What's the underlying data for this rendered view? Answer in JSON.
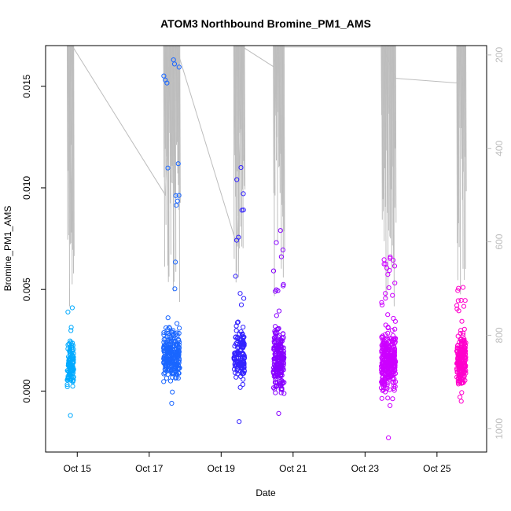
{
  "chart_data": {
    "type": "scatter",
    "title": "ATOM3 Northbound Bromine_PM1_AMS",
    "xlabel": "Date",
    "ylabel": "Bromine_PM1_AMS",
    "x_ticks": [
      "Oct 15",
      "Oct 17",
      "Oct 19",
      "Oct 21",
      "Oct 23",
      "Oct 25"
    ],
    "xlim": [
      "Oct 14.12",
      "Oct 26.38"
    ],
    "ylim": [
      -0.003,
      0.017
    ],
    "y_ticks": [
      "0.000",
      "0.005",
      "0.010",
      "0.015"
    ],
    "right_axis": {
      "label": "",
      "reversed": true,
      "ticks": [
        "200",
        "400",
        "600",
        "800",
        "1000"
      ],
      "ylim": [
        1050,
        180
      ],
      "color": "#bdbdbd"
    },
    "grid": false,
    "legend": "none",
    "marker": "open-circle",
    "color_scale": [
      "#00aaff",
      "#3333ff",
      "#9900ff",
      "#ff00cc"
    ],
    "series": [
      {
        "day_start": 14.72,
        "day_end": 14.9,
        "points": 110,
        "y_center": 0.0013,
        "y_spread": 0.0011,
        "y_min": -0.0012,
        "y_max": 0.0041,
        "color": "#00aaff"
      },
      {
        "day_start": 17.4,
        "day_end": 17.85,
        "points": 260,
        "y_center": 0.0018,
        "y_spread": 0.0012,
        "y_min": -0.0006,
        "y_max": 0.0163,
        "color": "#1a66ff"
      },
      {
        "day_start": 19.35,
        "day_end": 19.65,
        "points": 150,
        "y_center": 0.0017,
        "y_spread": 0.0013,
        "y_min": -0.0015,
        "y_max": 0.011,
        "color": "#3322ff"
      },
      {
        "day_start": 20.45,
        "day_end": 20.75,
        "points": 220,
        "y_center": 0.0015,
        "y_spread": 0.0013,
        "y_min": -0.0011,
        "y_max": 0.0079,
        "color": "#8800ff"
      },
      {
        "day_start": 23.45,
        "day_end": 23.85,
        "points": 330,
        "y_center": 0.0015,
        "y_spread": 0.0014,
        "y_min": -0.0023,
        "y_max": 0.0066,
        "color": "#cc00ff"
      },
      {
        "day_start": 25.55,
        "day_end": 25.8,
        "points": 220,
        "y_center": 0.0015,
        "y_spread": 0.0012,
        "y_min": -0.0005,
        "y_max": 0.0051,
        "color": "#ff00cc"
      }
    ],
    "altitude_trace": {
      "color": "#bdbdbd",
      "segments": [
        {
          "day": 14.8,
          "alt": 183
        },
        {
          "day": 14.84,
          "alt": 580
        },
        {
          "day": 14.88,
          "alt": 183
        },
        {
          "day": 17.45,
          "alt": 500
        },
        {
          "day": 17.6,
          "alt": 183
        },
        {
          "day": 17.75,
          "alt": 183
        },
        {
          "day": 19.45,
          "alt": 610
        },
        {
          "day": 19.6,
          "alt": 183
        },
        {
          "day": 20.45,
          "alt": 225
        },
        {
          "day": 20.6,
          "alt": 183
        },
        {
          "day": 23.5,
          "alt": 183
        },
        {
          "day": 23.85,
          "alt": 250
        },
        {
          "day": 25.55,
          "alt": 260
        },
        {
          "day": 25.7,
          "alt": 183
        }
      ]
    }
  }
}
